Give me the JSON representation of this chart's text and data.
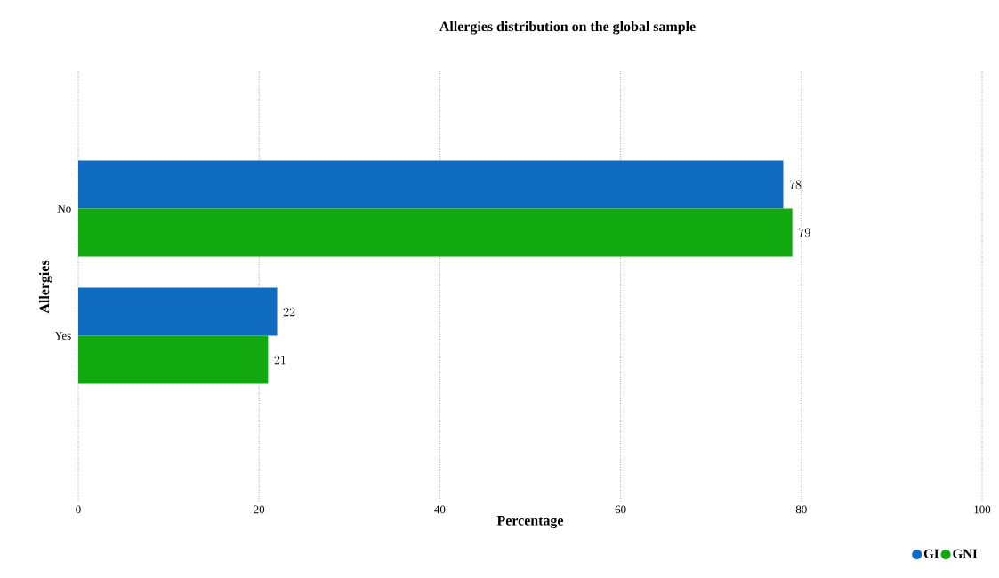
{
  "chart_data": {
    "type": "bar",
    "orientation": "horizontal",
    "title": "Allergies distribution on the global sample",
    "xlabel": "Percentage",
    "ylabel": "Allergies",
    "categories": [
      "No",
      "Yes"
    ],
    "series": [
      {
        "name": "GI",
        "color": "#0f6bc0",
        "values": [
          78,
          22
        ]
      },
      {
        "name": "GNI",
        "color": "#12a80f",
        "values": [
          79,
          21
        ]
      }
    ],
    "xlim": [
      0,
      100
    ],
    "xticks": [
      0,
      20,
      40,
      60,
      80,
      100
    ],
    "grid": "x",
    "legend": "bottom right",
    "data_labels": true
  }
}
